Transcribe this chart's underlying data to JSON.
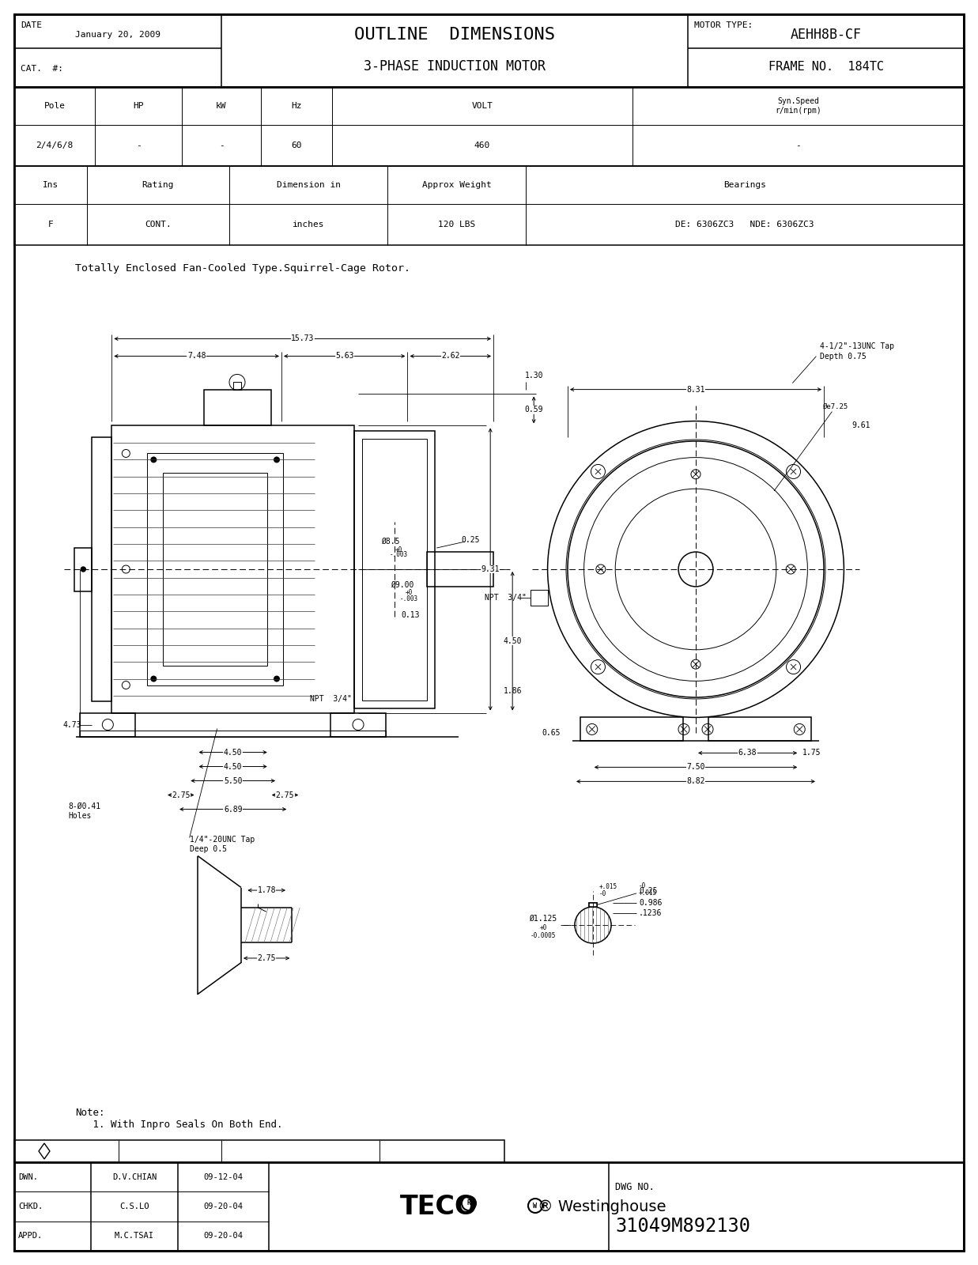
{
  "title_main": "OUTLINE  DIMENSIONS",
  "title_sub": "3-PHASE INDUCTION MOTOR",
  "motor_type_label": "MOTOR TYPE:",
  "motor_type": "AEHH8B-CF",
  "frame_no_label": "FRAME NO.  184TC",
  "date_label": "DATE",
  "date_value": "January 20, 2009",
  "cat_label": "CAT.  #:",
  "pole_header": "Pole",
  "hp_header": "HP",
  "kw_header": "kW",
  "hz_header": "Hz",
  "volt_header": "VOLT",
  "synspeed_header": "Syn.Speed\nr/min(rpm)",
  "pole_val": "2/4/6/8",
  "hp_val": "-",
  "kw_val": "-",
  "hz_val": "60",
  "volt_val": "460",
  "synspeed_val": "-",
  "ins_header": "Ins",
  "rating_header": "Rating",
  "dim_header": "Dimension in",
  "weight_header": "Approx Weight",
  "bearings_header": "Bearings",
  "ins_val": "F",
  "rating_val": "CONT.",
  "dim_val": "inches",
  "weight_val": "120 LBS",
  "bearings_val": "DE: 6306ZC3   NDE: 6306ZC3",
  "desc_text": "Totally Enclosed Fan-Cooled Type.Squirrel-Cage Rotor.",
  "dwn_label": "DWN.",
  "dwn_name": "D.V.CHIAN",
  "dwn_date": "09-12-04",
  "chkd_label": "CHKD.",
  "chkd_name": "C.S.LO",
  "chkd_date": "09-20-04",
  "appd_label": "APPD.",
  "appd_name": "M.C.TSAI",
  "appd_date": "09-20-04",
  "dwg_no_label": "DWG NO.",
  "dwg_no": "31049M892130",
  "note_text": "Note:\n   1. With Inpro Seals On Both End."
}
